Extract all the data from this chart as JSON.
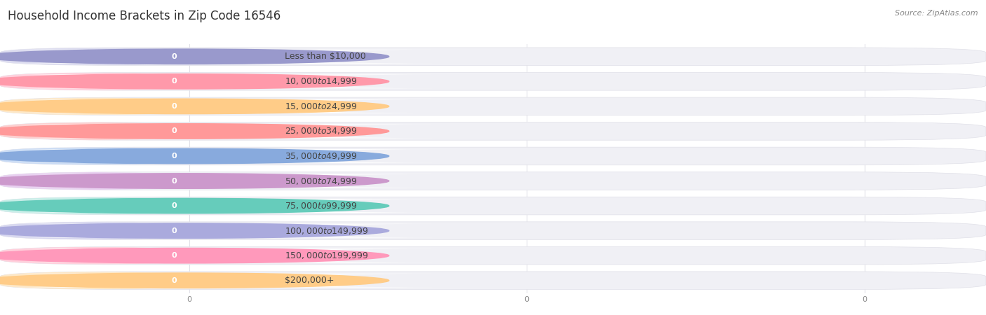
{
  "title": "Household Income Brackets in Zip Code 16546",
  "source": "Source: ZipAtlas.com",
  "categories": [
    "Less than $10,000",
    "$10,000 to $14,999",
    "$15,000 to $24,999",
    "$25,000 to $34,999",
    "$35,000 to $49,999",
    "$50,000 to $74,999",
    "$75,000 to $99,999",
    "$100,000 to $149,999",
    "$150,000 to $199,999",
    "$200,000+"
  ],
  "values": [
    0,
    0,
    0,
    0,
    0,
    0,
    0,
    0,
    0,
    0
  ],
  "bar_colors": [
    "#9999cc",
    "#ff99aa",
    "#ffcc88",
    "#ff9999",
    "#88aadd",
    "#cc99cc",
    "#66ccbb",
    "#aaaadd",
    "#ff99bb",
    "#ffcc88"
  ],
  "bar_light_colors": [
    "#ddddf0",
    "#ffd0dc",
    "#fde8c8",
    "#fdd0d0",
    "#ccddf5",
    "#e8d0f0",
    "#c8eee8",
    "#d8d8f0",
    "#ffd0dc",
    "#fde8c8"
  ],
  "background_color": "#ffffff",
  "bar_bg_color": "#f0f0f5",
  "bar_bg_edge_color": "#e0e0e8",
  "grid_color": "#e0e0e8",
  "label_color": "#444444",
  "tick_color": "#888888",
  "title_color": "#333333",
  "source_color": "#888888",
  "title_fontsize": 12,
  "label_fontsize": 9,
  "value_fontsize": 8,
  "tick_fontsize": 8,
  "source_fontsize": 8
}
